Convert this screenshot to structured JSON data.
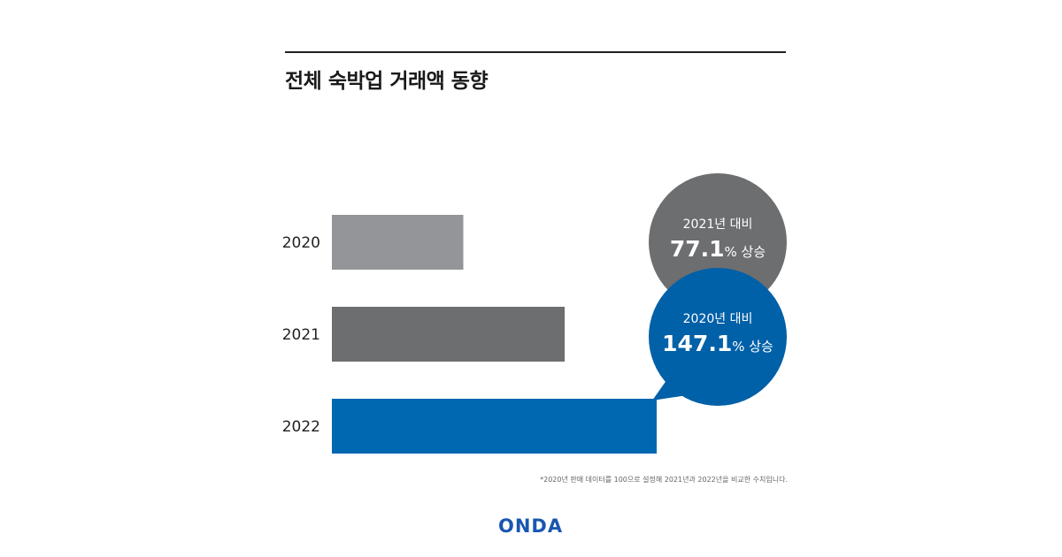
{
  "title": "전체 숙박업 거래액 동향",
  "footnote": "*2020년 판매 데이터를 100으로 설정해 2021년과 2022년을 비교한 수치입니다.",
  "logo": "ONDA",
  "colors": {
    "bar_2020": "#939598",
    "bar_2021": "#6d6e70",
    "bar_2022": "#0067b1",
    "bubble_gray": "#6d6e70",
    "bubble_blue": "#0060a8",
    "logo": "#1a56b0"
  },
  "chart_data": {
    "type": "bar",
    "orientation": "horizontal",
    "categories": [
      "2020",
      "2021",
      "2022"
    ],
    "values": [
      100,
      177.1,
      247.1
    ],
    "xlim": [
      0,
      247.1
    ],
    "grid": false,
    "annotations": [
      {
        "line1": "2021년 대비",
        "value": "77.1",
        "unit": "%",
        "suffix": " 상승",
        "color": "#6d6e70"
      },
      {
        "line1": "2020년 대비",
        "value": "147.1",
        "unit": "%",
        "suffix": " 상승",
        "color": "#0060a8"
      }
    ]
  }
}
